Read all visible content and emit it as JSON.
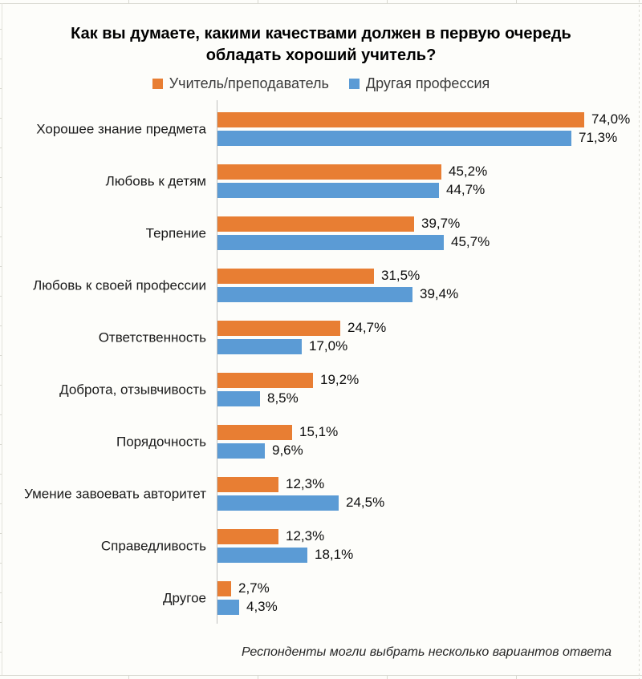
{
  "chart_data": {
    "type": "bar",
    "orientation": "horizontal",
    "title": "Как вы думаете, какими качествами должен в первую очередь обладать хороший учитель?",
    "categories": [
      "Хорошее знание предмета",
      "Любовь к детям",
      "Терпение",
      "Любовь к своей профессии",
      "Ответственность",
      "Доброта, отзывчивость",
      "Порядочность",
      "Умение завоевать авторитет",
      "Справедливость",
      "Другое"
    ],
    "series": [
      {
        "name": "Учитель/преподаватель",
        "color": "#E87E33",
        "values": [
          74.0,
          45.2,
          39.7,
          31.5,
          24.7,
          19.2,
          15.1,
          12.3,
          12.3,
          2.7
        ],
        "labels": [
          "74,0%",
          "45,2%",
          "39,7%",
          "31,5%",
          "24,7%",
          "19,2%",
          "15,1%",
          "12,3%",
          "12,3%",
          "2,7%"
        ]
      },
      {
        "name": "Другая профессия",
        "color": "#5B9BD5",
        "values": [
          71.3,
          44.7,
          45.7,
          39.4,
          17.0,
          8.5,
          9.6,
          24.5,
          18.1,
          4.3
        ],
        "labels": [
          "71,3%",
          "44,7%",
          "45,7%",
          "39,4%",
          "17,0%",
          "8,5%",
          "9,6%",
          "24,5%",
          "18,1%",
          "4,3%"
        ]
      }
    ],
    "xlim": [
      0,
      84
    ],
    "grid": false,
    "legend_position": "top-center",
    "value_labels": "outside-end",
    "axis_color": "#BFBFBF",
    "annotation": "Респонденты могли выбрать несколько вариантов ответа"
  }
}
